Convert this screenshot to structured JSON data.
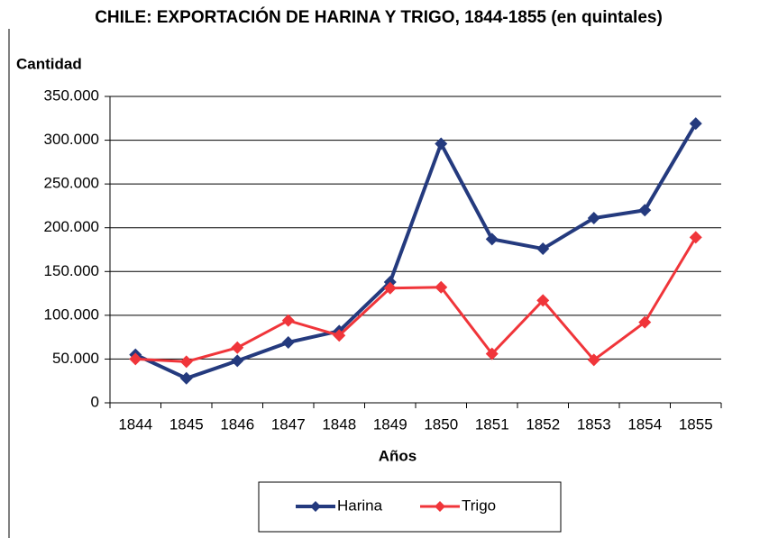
{
  "chart_data": {
    "type": "line",
    "title": "CHILE: EXPORTACIÓN DE HARINA Y TRIGO, 1844-1855 (en quintales)",
    "y_label": "Cantidad",
    "x_label": "Años",
    "categories": [
      "1844",
      "1845",
      "1846",
      "1847",
      "1848",
      "1849",
      "1850",
      "1851",
      "1852",
      "1853",
      "1854",
      "1855"
    ],
    "series": [
      {
        "name": "Harina",
        "color": "#243a7e",
        "values": [
          55000,
          28000,
          48000,
          69000,
          82000,
          138000,
          296000,
          187000,
          176000,
          211000,
          220000,
          319000
        ]
      },
      {
        "name": "Trigo",
        "color": "#f0353a",
        "values": [
          50000,
          47000,
          63000,
          94000,
          77000,
          131000,
          132000,
          56000,
          117000,
          49000,
          92000,
          189000
        ]
      }
    ],
    "ylim": [
      0,
      350000
    ],
    "yticks": [
      0,
      {
        "value": 50000,
        "label": "50.000"
      },
      {
        "value": 100000,
        "label": "100.000"
      },
      {
        "value": 150000,
        "label": "150.000"
      },
      {
        "value": 200000,
        "label": "200.000"
      },
      {
        "value": 250000,
        "label": "250.000"
      },
      {
        "value": 300000,
        "label": "300.000"
      },
      {
        "value": 350000,
        "label": "350.000"
      }
    ],
    "grid": true
  }
}
